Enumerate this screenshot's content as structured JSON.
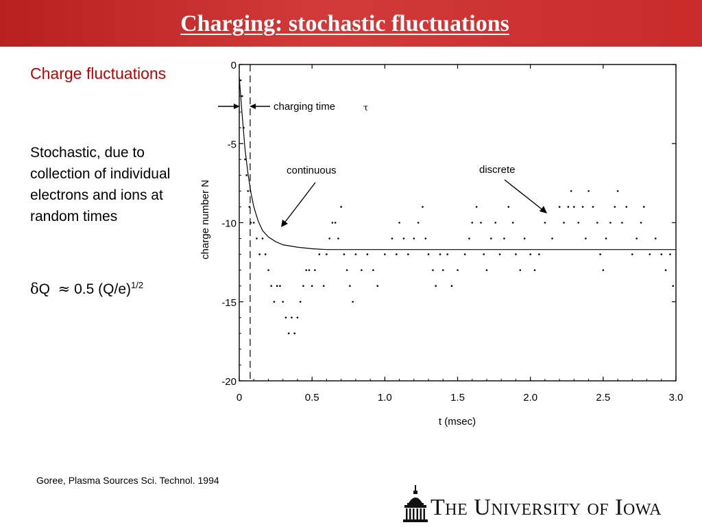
{
  "slide": {
    "title": "Charging: stochastic fluctuations",
    "heading": "Charge fluctuations",
    "body": "Stochastic, due to collection of individual electrons and ions at random times",
    "formula": {
      "delta": "δ",
      "q": "Q",
      "approx": "≈",
      "value": "0.5 (Q/e)",
      "exponent": "1/2"
    },
    "citation": "Goree, Plasma Sources Sci. Technol. 1994",
    "logo": {
      "text": "The University of Iowa",
      "icon": "old-capitol-icon"
    },
    "colors": {
      "title_bar": "#c62828",
      "heading": "#c00000"
    }
  },
  "chart_data": {
    "type": "scatter",
    "xlabel": "t (msec)",
    "ylabel": "charge number  N",
    "xlim": [
      0,
      3.0
    ],
    "ylim": [
      -20,
      0
    ],
    "x_ticks": [
      "0",
      "0.5",
      "1.0",
      "1.5",
      "2.0",
      "2.5",
      "3.0"
    ],
    "y_ticks": [
      "0",
      "-5",
      "-10",
      "-15",
      "-20"
    ],
    "annotations": {
      "charging_time": "charging time",
      "tau": "τ",
      "continuous": "continuous",
      "discrete": "discrete"
    },
    "charging_time_marker_t": 0.075,
    "continuous_curve": {
      "equilibrium": -11.7,
      "start": 0,
      "tau": 0.075,
      "samples": [
        [
          0.0,
          -0.8
        ],
        [
          0.02,
          -3.2
        ],
        [
          0.04,
          -5.4
        ],
        [
          0.06,
          -6.9
        ],
        [
          0.08,
          -8.1
        ],
        [
          0.1,
          -9.0
        ],
        [
          0.13,
          -9.9
        ],
        [
          0.16,
          -10.5
        ],
        [
          0.2,
          -10.9
        ],
        [
          0.25,
          -11.2
        ],
        [
          0.3,
          -11.4
        ],
        [
          0.4,
          -11.55
        ],
        [
          0.5,
          -11.65
        ],
        [
          0.6,
          -11.7
        ],
        [
          3.0,
          -11.7
        ]
      ]
    },
    "discrete_series": [
      [
        0.01,
        -1
      ],
      [
        0.02,
        -2
      ],
      [
        0.03,
        -4
      ],
      [
        0.04,
        -6
      ],
      [
        0.05,
        -7
      ],
      [
        0.06,
        -8
      ],
      [
        0.07,
        -9
      ],
      [
        0.08,
        -10
      ],
      [
        0.1,
        -10
      ],
      [
        0.12,
        -11
      ],
      [
        0.14,
        -12
      ],
      [
        0.16,
        -11
      ],
      [
        0.18,
        -12
      ],
      [
        0.2,
        -13
      ],
      [
        0.22,
        -14
      ],
      [
        0.24,
        -15
      ],
      [
        0.26,
        -14
      ],
      [
        0.28,
        -14
      ],
      [
        0.3,
        -15
      ],
      [
        0.32,
        -16
      ],
      [
        0.34,
        -17
      ],
      [
        0.36,
        -16
      ],
      [
        0.38,
        -17
      ],
      [
        0.4,
        -16
      ],
      [
        0.42,
        -15
      ],
      [
        0.44,
        -14
      ],
      [
        0.46,
        -13
      ],
      [
        0.48,
        -13
      ],
      [
        0.5,
        -14
      ],
      [
        0.52,
        -13
      ],
      [
        0.55,
        -12
      ],
      [
        0.58,
        -14
      ],
      [
        0.6,
        -12
      ],
      [
        0.62,
        -11
      ],
      [
        0.64,
        -10
      ],
      [
        0.66,
        -10
      ],
      [
        0.68,
        -11
      ],
      [
        0.7,
        -9
      ],
      [
        0.72,
        -12
      ],
      [
        0.74,
        -13
      ],
      [
        0.76,
        -14
      ],
      [
        0.78,
        -15
      ],
      [
        0.8,
        -12
      ],
      [
        0.84,
        -13
      ],
      [
        0.88,
        -12
      ],
      [
        0.92,
        -13
      ],
      [
        0.95,
        -14
      ],
      [
        1.0,
        -12
      ],
      [
        1.05,
        -11
      ],
      [
        1.08,
        -12
      ],
      [
        1.1,
        -10
      ],
      [
        1.13,
        -11
      ],
      [
        1.16,
        -12
      ],
      [
        1.2,
        -11
      ],
      [
        1.23,
        -10
      ],
      [
        1.26,
        -9
      ],
      [
        1.28,
        -11
      ],
      [
        1.3,
        -12
      ],
      [
        1.33,
        -13
      ],
      [
        1.35,
        -14
      ],
      [
        1.38,
        -12
      ],
      [
        1.4,
        -13
      ],
      [
        1.43,
        -12
      ],
      [
        1.46,
        -14
      ],
      [
        1.5,
        -13
      ],
      [
        1.55,
        -12
      ],
      [
        1.58,
        -11
      ],
      [
        1.6,
        -10
      ],
      [
        1.63,
        -9
      ],
      [
        1.66,
        -10
      ],
      [
        1.68,
        -12
      ],
      [
        1.7,
        -13
      ],
      [
        1.73,
        -11
      ],
      [
        1.76,
        -10
      ],
      [
        1.79,
        -12
      ],
      [
        1.82,
        -11
      ],
      [
        1.85,
        -9
      ],
      [
        1.88,
        -10
      ],
      [
        1.9,
        -12
      ],
      [
        1.93,
        -13
      ],
      [
        1.96,
        -11
      ],
      [
        2.0,
        -12
      ],
      [
        2.03,
        -13
      ],
      [
        2.06,
        -12
      ],
      [
        2.1,
        -10
      ],
      [
        2.15,
        -11
      ],
      [
        2.2,
        -9
      ],
      [
        2.23,
        -10
      ],
      [
        2.26,
        -9
      ],
      [
        2.28,
        -8
      ],
      [
        2.3,
        -9
      ],
      [
        2.33,
        -10
      ],
      [
        2.36,
        -9
      ],
      [
        2.38,
        -11
      ],
      [
        2.4,
        -8
      ],
      [
        2.43,
        -9
      ],
      [
        2.46,
        -10
      ],
      [
        2.48,
        -12
      ],
      [
        2.5,
        -13
      ],
      [
        2.52,
        -11
      ],
      [
        2.55,
        -10
      ],
      [
        2.58,
        -9
      ],
      [
        2.6,
        -8
      ],
      [
        2.63,
        -10
      ],
      [
        2.66,
        -9
      ],
      [
        2.7,
        -12
      ],
      [
        2.73,
        -11
      ],
      [
        2.76,
        -10
      ],
      [
        2.78,
        -9
      ],
      [
        2.82,
        -12
      ],
      [
        2.86,
        -11
      ],
      [
        2.9,
        -12
      ],
      [
        2.93,
        -13
      ],
      [
        2.96,
        -12
      ],
      [
        2.98,
        -14
      ]
    ]
  }
}
